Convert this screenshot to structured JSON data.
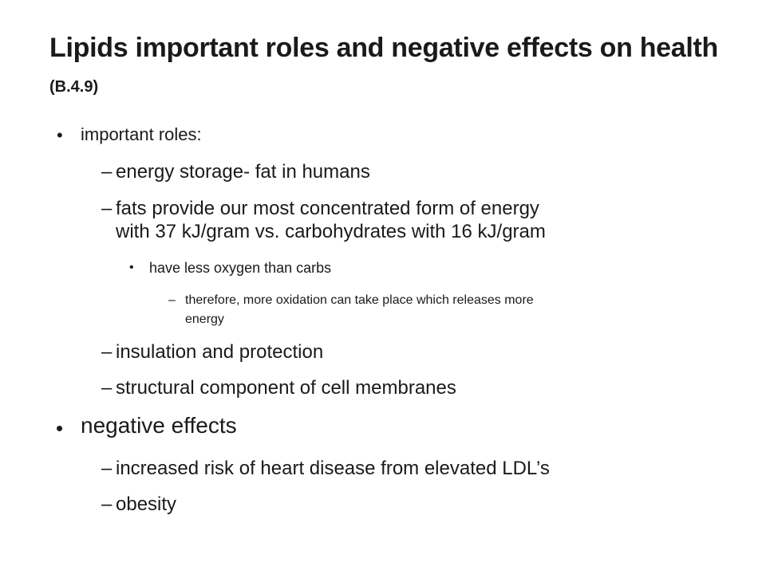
{
  "slide": {
    "title_main": "Lipids important roles and negative effects on health",
    "title_code": "(B.4.9)",
    "bullet_char": "•",
    "dash_char": "–",
    "roles_heading": "important roles:",
    "roles": [
      "energy storage- fat in humans",
      "fats provide our most concentrated form of energy",
      "with 37 kJ/gram vs. carbohydrates with 16 kJ/gram"
    ],
    "oxygen_note": "have less oxygen than carbs",
    "oxidation_note_line1": "therefore, more oxidation can take place which releases more",
    "oxidation_note_line2": "energy",
    "roles_more": [
      "insulation and protection",
      "structural component of cell membranes"
    ],
    "negative_heading": "negative effects",
    "negatives": [
      "increased risk of heart disease from elevated LDL’s",
      "obesity"
    ]
  }
}
